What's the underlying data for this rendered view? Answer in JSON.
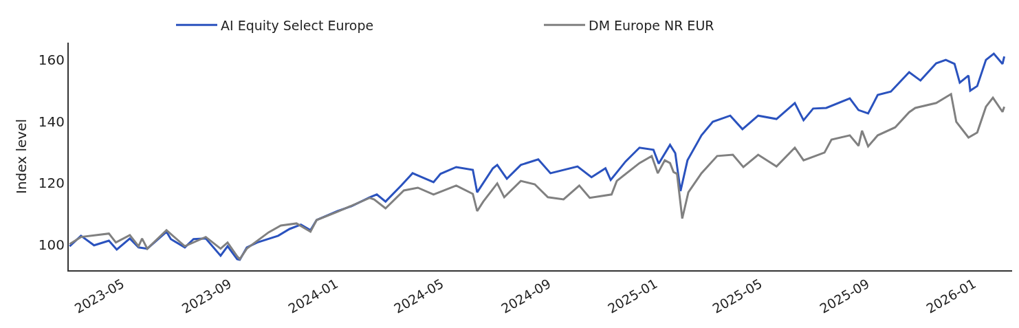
{
  "chart_data": {
    "type": "line",
    "ylabel": "Index level",
    "legend": "top",
    "marker": "none",
    "line_style": "solid",
    "xlim": [
      "2023-03-01",
      "2026-02-14"
    ],
    "ylim": [
      91.7,
      165.6
    ],
    "xticks": [
      {
        "value": "2023-05-01",
        "label": "2023-05"
      },
      {
        "value": "2023-09-01",
        "label": "2023-09"
      },
      {
        "value": "2024-01-01",
        "label": "2024-01"
      },
      {
        "value": "2024-05-01",
        "label": "2024-05"
      },
      {
        "value": "2024-09-01",
        "label": "2024-09"
      },
      {
        "value": "2025-01-01",
        "label": "2025-01"
      },
      {
        "value": "2025-05-01",
        "label": "2025-05"
      },
      {
        "value": "2025-09-01",
        "label": "2025-09"
      },
      {
        "value": "2026-01-01",
        "label": "2026-01"
      }
    ],
    "yticks": [
      100,
      120,
      140,
      160
    ],
    "series": [
      {
        "name": "AI Equity Select Europe",
        "color": "#2a52be",
        "x": [
          "2023-03-02",
          "2023-03-15",
          "2023-03-30",
          "2023-04-16",
          "2023-04-25",
          "2023-05-10",
          "2023-05-20",
          "2023-05-30",
          "2023-06-21",
          "2023-06-26",
          "2023-07-12",
          "2023-07-22",
          "2023-08-05",
          "2023-08-22",
          "2023-08-30",
          "2023-09-10",
          "2023-09-13",
          "2023-09-21",
          "2023-10-03",
          "2023-10-27",
          "2023-11-09",
          "2023-11-22",
          "2023-12-03",
          "2023-12-10",
          "2024-01-03",
          "2024-01-19",
          "2024-02-09",
          "2024-02-17",
          "2024-02-27",
          "2024-03-16",
          "2024-03-29",
          "2024-04-22",
          "2024-04-30",
          "2024-05-18",
          "2024-06-06",
          "2024-06-11",
          "2024-06-29",
          "2024-07-04",
          "2024-07-15",
          "2024-07-31",
          "2024-08-20",
          "2024-09-03",
          "2024-10-04",
          "2024-10-20",
          "2024-11-05",
          "2024-11-11",
          "2024-11-28",
          "2024-12-14",
          "2024-12-30",
          "2025-01-05",
          "2025-01-18",
          "2025-01-24",
          "2025-01-30",
          "2025-02-07",
          "2025-02-23",
          "2025-03-08",
          "2025-03-28",
          "2025-04-11",
          "2025-04-29",
          "2025-05-20",
          "2025-06-10",
          "2025-06-20",
          "2025-07-01",
          "2025-07-16",
          "2025-08-12",
          "2025-08-22",
          "2025-09-02",
          "2025-09-13",
          "2025-09-28",
          "2025-10-19",
          "2025-11-01",
          "2025-11-19",
          "2025-11-30",
          "2025-12-10",
          "2025-12-16",
          "2025-12-26",
          "2025-12-28",
          "2026-01-05",
          "2026-01-15",
          "2026-01-24",
          "2026-02-03",
          "2026-02-05"
        ],
        "values": [
          99.5,
          102.9,
          99.8,
          101.3,
          98.4,
          102,
          99.1,
          98.7,
          104.2,
          101.8,
          99.1,
          101.8,
          102,
          96.4,
          99.5,
          95.3,
          95.1,
          99.1,
          100.7,
          102.9,
          105.1,
          106.5,
          104.7,
          108,
          110.9,
          112.5,
          115.4,
          116.3,
          114,
          119.2,
          123.2,
          120.3,
          123,
          125.2,
          124.3,
          117,
          124.8,
          125.9,
          121.4,
          125.9,
          127.7,
          123.2,
          125.4,
          121.9,
          124.8,
          121,
          127,
          131.5,
          130.8,
          126.3,
          132.4,
          129.7,
          117.4,
          127.4,
          135.5,
          139.9,
          141.9,
          137.5,
          141.9,
          140.8,
          146,
          140.4,
          144.2,
          144.4,
          147.5,
          143.7,
          142.6,
          148.6,
          149.7,
          156,
          153.3,
          158.9,
          160,
          158.7,
          152.6,
          154.9,
          150,
          151.5,
          160,
          162,
          158.7,
          161.1
        ]
      },
      {
        "name": "DM Europe NR EUR",
        "color": "#808080",
        "x": [
          "2023-03-02",
          "2023-03-15",
          "2023-04-16",
          "2023-04-24",
          "2023-05-10",
          "2023-05-20",
          "2023-05-24",
          "2023-05-30",
          "2023-06-21",
          "2023-07-12",
          "2023-08-05",
          "2023-08-22",
          "2023-08-30",
          "2023-09-10",
          "2023-09-13",
          "2023-09-21",
          "2023-10-16",
          "2023-10-30",
          "2023-11-17",
          "2023-12-03",
          "2023-12-10",
          "2024-01-03",
          "2024-02-09",
          "2024-02-14",
          "2024-02-27",
          "2024-03-19",
          "2024-04-04",
          "2024-04-22",
          "2024-05-18",
          "2024-06-06",
          "2024-06-11",
          "2024-06-18",
          "2024-07-04",
          "2024-07-12",
          "2024-07-31",
          "2024-08-16",
          "2024-08-31",
          "2024-09-18",
          "2024-10-06",
          "2024-10-18",
          "2024-11-12",
          "2024-11-18",
          "2024-12-14",
          "2024-12-28",
          "2025-01-04",
          "2025-01-12",
          "2025-01-18",
          "2025-01-22",
          "2025-01-26",
          "2025-02-01",
          "2025-02-08",
          "2025-02-23",
          "2025-03-13",
          "2025-03-31",
          "2025-04-12",
          "2025-04-29",
          "2025-05-20",
          "2025-06-10",
          "2025-06-20",
          "2025-07-14",
          "2025-07-22",
          "2025-08-12",
          "2025-08-22",
          "2025-08-26",
          "2025-09-02",
          "2025-09-13",
          "2025-10-03",
          "2025-10-19",
          "2025-10-26",
          "2025-11-19",
          "2025-12-06",
          "2025-12-12",
          "2025-12-26",
          "2026-01-05",
          "2026-01-15",
          "2026-01-23",
          "2026-02-03",
          "2026-02-05"
        ],
        "values": [
          100.2,
          102.5,
          103.6,
          100.7,
          103.1,
          99.5,
          102,
          98.7,
          104.7,
          99.5,
          102.5,
          98.7,
          100.7,
          96.2,
          95.3,
          98.7,
          104,
          106.2,
          106.9,
          104.2,
          108,
          110.7,
          115.2,
          114.7,
          111.8,
          117.6,
          118.5,
          116.3,
          119.2,
          116.5,
          110.9,
          114,
          119.9,
          115.4,
          120.7,
          119.6,
          115.4,
          114.7,
          119.2,
          115.2,
          116.3,
          120.7,
          126.5,
          128.8,
          123.2,
          127.4,
          126.5,
          123.6,
          123,
          108.5,
          117,
          123.2,
          128.8,
          129.2,
          125.2,
          129.2,
          125.4,
          131.5,
          127.4,
          129.9,
          134.1,
          135.5,
          132.1,
          137,
          131.9,
          135.5,
          138.1,
          143,
          144.4,
          146,
          148.9,
          139.9,
          134.8,
          136.4,
          144.8,
          147.7,
          143.1,
          144.8
        ]
      }
    ]
  }
}
